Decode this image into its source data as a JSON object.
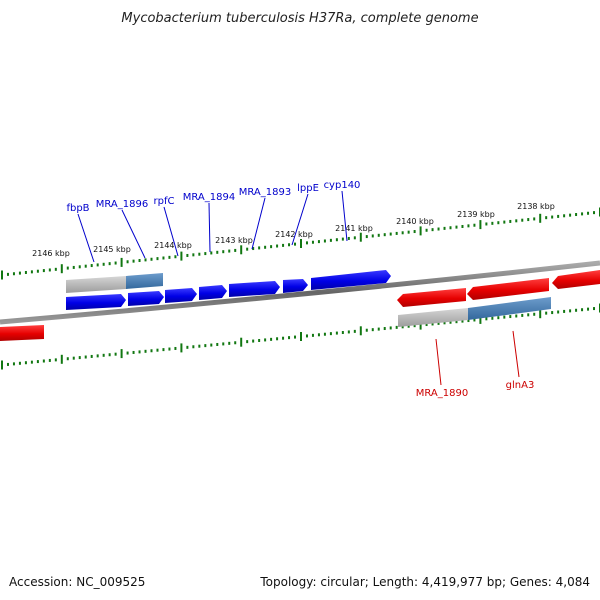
{
  "header": {
    "title": "Mycobacterium tuberculosis H37Ra, complete genome"
  },
  "footer": {
    "accession": "Accession: NC_009525",
    "summary": "Topology: circular; Length: 4,419,977 bp; Genes: 4,084"
  },
  "colors": {
    "forward_strand": "#0000ee",
    "reverse_strand": "#ee0000",
    "backbone": "#777777",
    "ticks": "#117711",
    "gene_bar_grey": "#b5b5b5",
    "gene_bar_blue": "#4a7fb0",
    "label_forward": "#0000cc",
    "label_reverse": "#cc0000"
  },
  "upper_scale": {
    "labels": [
      "2146 kbp",
      "2145 kbp",
      "2144 kbp",
      "2143 kbp",
      "2142 kbp",
      "2141 kbp",
      "2140 kbp",
      "2139 kbp",
      "2138 kbp"
    ]
  },
  "forward_genes": {
    "labels": [
      "fbpB",
      "MRA_1896",
      "rpfC",
      "MRA_1894",
      "MRA_1893",
      "lppE",
      "cyp140"
    ]
  },
  "reverse_genes": {
    "labels": [
      "MRA_1890",
      "glnA3"
    ]
  }
}
